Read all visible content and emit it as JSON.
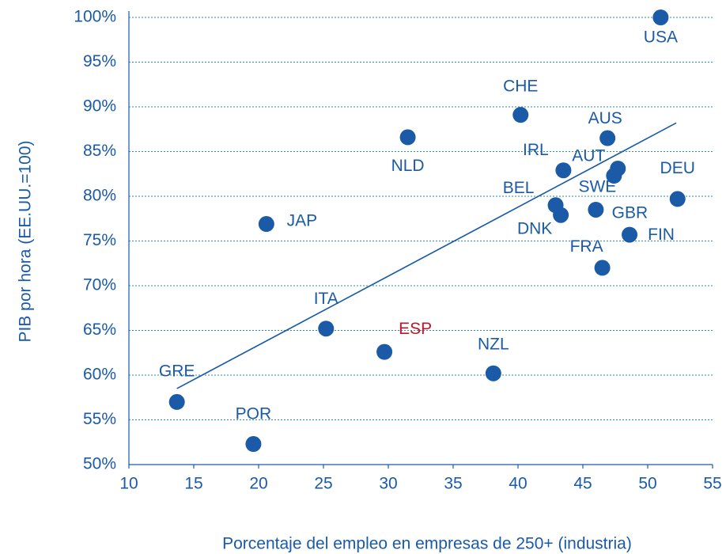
{
  "chart_data": {
    "type": "scatter",
    "x_label": "Porcentaje del empleo en empresas de 250+ (industria)",
    "y_label": "PIB por hora (EE.UU.=100)",
    "series": [
      {
        "color": "#1a5aa6",
        "labels": [
          "USA",
          "CHE",
          "AUS",
          "NLD",
          "IRL",
          "AUT",
          "SWE",
          "BEL",
          "DNK",
          "GBR",
          "FIN",
          "FRA",
          "DEU",
          "JAP",
          "ITA",
          "ESP",
          "NZL",
          "GRE",
          "POR"
        ],
        "label_colors": [
          "#1a5aa6",
          "#1a5aa6",
          "#1a5aa6",
          "#1a5aa6",
          "#1a5aa6",
          "#1a5aa6",
          "#1a5aa6",
          "#1a5aa6",
          "#1a5aa6",
          "#1a5aa6",
          "#1a5aa6",
          "#1a5aa6",
          "#1a5aa6",
          "#1a5aa6",
          "#1a5aa6",
          "#c0152f",
          "#1a5aa6",
          "#1a5aa6",
          "#1a5aa6"
        ],
        "x": [
          51.0,
          40.2,
          46.9,
          31.5,
          43.5,
          47.7,
          47.4,
          42.9,
          43.3,
          46.0,
          48.6,
          46.5,
          52.3,
          20.6,
          25.2,
          29.7,
          38.1,
          13.7,
          19.6
        ],
        "values": [
          100,
          89.1,
          86.5,
          86.6,
          82.9,
          83.1,
          82.3,
          79.0,
          77.9,
          78.5,
          75.7,
          72.0,
          79.7,
          76.9,
          65.2,
          62.6,
          60.2,
          57.0,
          52.3
        ]
      }
    ],
    "trendline": {
      "color": "#1a5aa6",
      "x": [
        13.7,
        52.2
      ],
      "y": [
        58.5,
        88.2
      ]
    },
    "xlim": [
      10,
      55
    ],
    "xticks": [
      10,
      15,
      20,
      25,
      30,
      35,
      40,
      45,
      50,
      55
    ],
    "ylim": [
      50,
      100
    ],
    "yticks": [
      {
        "value": 50,
        "label": "50%"
      },
      {
        "value": 55,
        "label": "55%"
      },
      {
        "value": 60,
        "label": "60%"
      },
      {
        "value": 65,
        "label": "65%"
      },
      {
        "value": 70,
        "label": "70%"
      },
      {
        "value": 75,
        "label": "75%"
      },
      {
        "value": 80,
        "label": "80%"
      },
      {
        "value": 85,
        "label": "85%"
      },
      {
        "value": 90,
        "label": "90%"
      },
      {
        "value": 95,
        "label": "95%"
      },
      {
        "value": 100,
        "label": "100%"
      }
    ],
    "grid": true
  }
}
